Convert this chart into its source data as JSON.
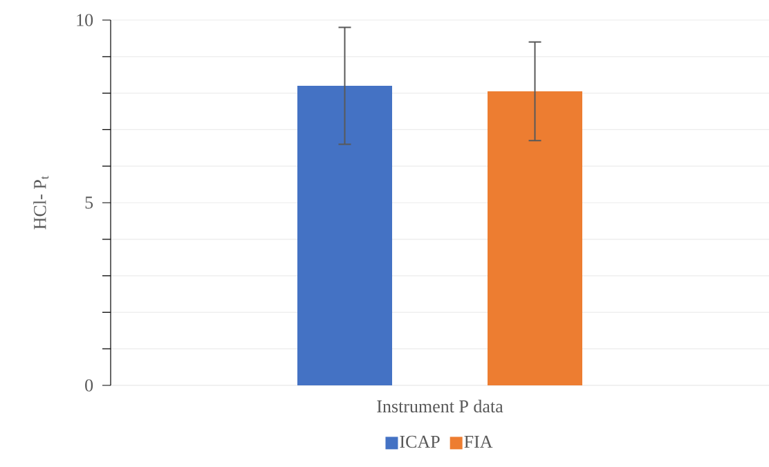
{
  "chart_data": {
    "type": "bar",
    "ylabel": "HCl- P$_{t}$",
    "categories": [
      "Instrument P data"
    ],
    "series": [
      {
        "name": "ICAP",
        "color": "#4472c4",
        "values": [
          8.2
        ],
        "errors": [
          1.6
        ]
      },
      {
        "name": "FIA",
        "color": "#ed7d31",
        "values": [
          8.05
        ],
        "errors": [
          1.35
        ]
      }
    ],
    "ylim": [
      0,
      10
    ],
    "yticks": [
      0,
      {
        "value": 1,
        "label": null
      },
      {
        "value": 2,
        "label": null
      },
      {
        "value": 3,
        "label": null
      },
      {
        "value": 4,
        "label": null
      },
      5,
      {
        "value": 6,
        "label": null
      },
      {
        "value": 7,
        "label": null
      },
      {
        "value": 8,
        "label": null
      },
      {
        "value": 9,
        "label": null
      },
      10
    ],
    "grid": "y",
    "legend": "bottom"
  }
}
